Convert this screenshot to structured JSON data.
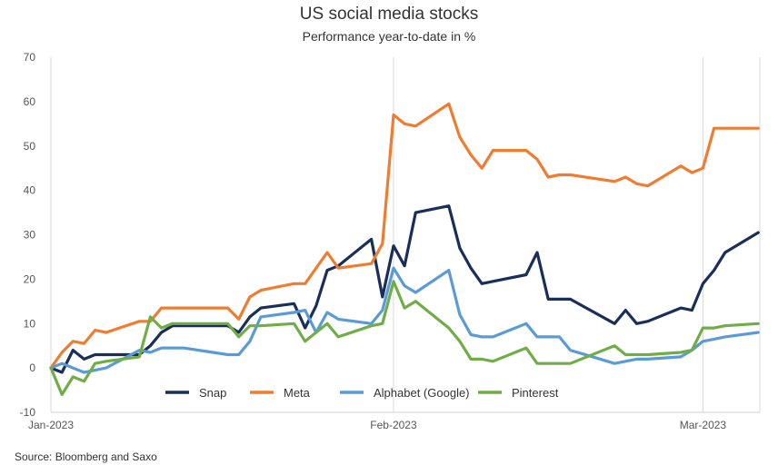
{
  "chart_data": {
    "type": "line",
    "title": "US social media stocks",
    "subtitle": "Performance year-to-date in %",
    "source": "Source: Bloomberg and Saxo",
    "xlabel": "",
    "ylabel": "",
    "ylim": [
      -10,
      70
    ],
    "yticks": [
      "-10",
      "0",
      "10",
      "20",
      "30",
      "40",
      "50",
      "60",
      "70"
    ],
    "xticks": [
      {
        "label": "Jan-2023",
        "date": "2023-01-01"
      },
      {
        "label": "Feb-2023",
        "date": "2023-02-01"
      },
      {
        "label": "Mar-2023",
        "date": "2023-03-01"
      }
    ],
    "xlim": [
      "2023-01-01",
      "2023-03-06"
    ],
    "grid": "vertical at month ticks",
    "legend": "bottom",
    "x": [
      "2023-01-01",
      "2023-01-02",
      "2023-01-03",
      "2023-01-04",
      "2023-01-05",
      "2023-01-06",
      "2023-01-09",
      "2023-01-10",
      "2023-01-11",
      "2023-01-12",
      "2023-01-13",
      "2023-01-17",
      "2023-01-18",
      "2023-01-19",
      "2023-01-20",
      "2023-01-23",
      "2023-01-24",
      "2023-01-25",
      "2023-01-26",
      "2023-01-27",
      "2023-01-30",
      "2023-01-31",
      "2023-02-01",
      "2023-02-02",
      "2023-02-03",
      "2023-02-06",
      "2023-02-07",
      "2023-02-08",
      "2023-02-09",
      "2023-02-10",
      "2023-02-13",
      "2023-02-14",
      "2023-02-15",
      "2023-02-16",
      "2023-02-17",
      "2023-02-21",
      "2023-02-22",
      "2023-02-23",
      "2023-02-24",
      "2023-02-27",
      "2023-02-28",
      "2023-03-01",
      "2023-03-02",
      "2023-03-03",
      "2023-03-06"
    ],
    "series": [
      {
        "name": "Snap",
        "color": "#1a2e5a",
        "values": [
          0,
          -1,
          4,
          2,
          3,
          3,
          3,
          5,
          8,
          9.5,
          9.5,
          9.5,
          8,
          11.5,
          13.5,
          14.5,
          9,
          14,
          22,
          23,
          29,
          16,
          27.5,
          23,
          35,
          36.5,
          27,
          22.5,
          19,
          19.5,
          21,
          26,
          15.5,
          15.5,
          15.5,
          10,
          13,
          10,
          10.5,
          13.5,
          13,
          19,
          22,
          26,
          30.5
        ]
      },
      {
        "name": "Meta",
        "color": "#ee7d31",
        "values": [
          0,
          3.5,
          6,
          5.5,
          8.5,
          8,
          10.5,
          10.5,
          13.5,
          13.5,
          13.5,
          13.5,
          11,
          16,
          17.5,
          19,
          19,
          22.5,
          26,
          22.5,
          23.5,
          28,
          57,
          55,
          54.5,
          59.5,
          52,
          48,
          45,
          49,
          49,
          47,
          43,
          43.5,
          43.5,
          42,
          43,
          41.5,
          41,
          45.5,
          44,
          45,
          54,
          54,
          54
        ]
      },
      {
        "name": "Alphabet (Google)",
        "color": "#5b9bd5",
        "values": [
          0,
          1,
          0,
          -1,
          -0.5,
          0,
          4,
          3.5,
          4.5,
          4.5,
          4.5,
          3,
          3,
          6,
          11.5,
          12.5,
          13,
          8,
          12.5,
          11,
          10,
          13,
          22.5,
          18.5,
          17,
          22,
          12,
          7.5,
          7,
          7,
          10,
          7,
          7,
          7,
          4,
          1,
          1.5,
          2,
          2,
          2.5,
          4,
          6,
          6.5,
          7,
          8
        ]
      },
      {
        "name": "Pinterest",
        "color": "#70ad47",
        "values": [
          0,
          -6,
          -2,
          -3,
          1,
          1.5,
          2.5,
          11.5,
          9,
          10,
          10,
          10,
          7,
          9.5,
          9.5,
          10,
          6,
          8,
          10,
          7,
          9.5,
          10,
          19.5,
          13.5,
          15,
          9,
          6,
          2,
          2,
          1.5,
          4.5,
          1,
          1,
          1,
          1,
          5,
          3,
          3,
          3,
          3.5,
          4,
          9,
          9,
          9.5,
          10
        ]
      }
    ]
  }
}
